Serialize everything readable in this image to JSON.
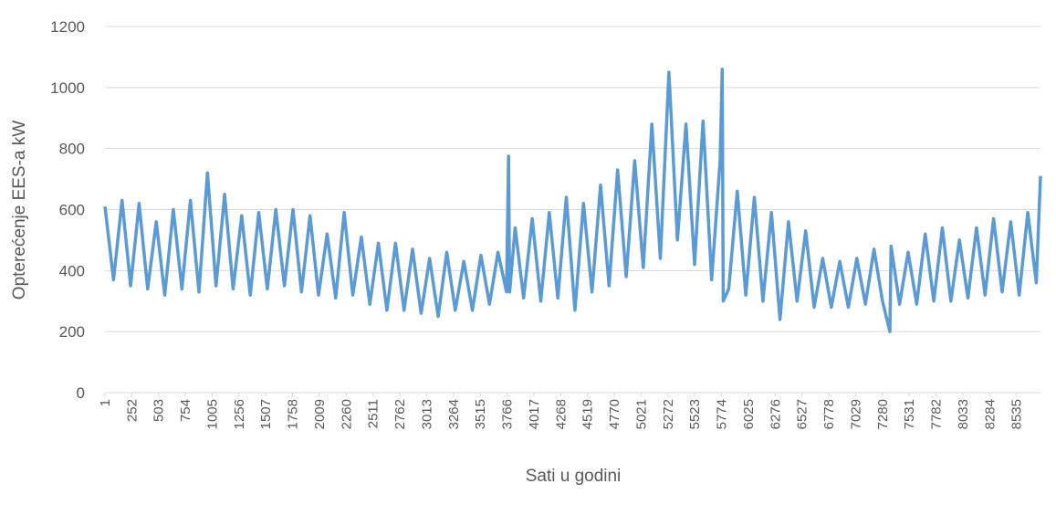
{
  "chart_data": {
    "type": "line",
    "xlabel": "Sati u godini",
    "ylabel": "Opterećenje EES-a kW",
    "xlim": [
      1,
      8760
    ],
    "xticks": [
      1,
      252,
      503,
      754,
      1005,
      1256,
      1507,
      1758,
      2009,
      2260,
      2511,
      2762,
      3013,
      3264,
      3515,
      3766,
      4017,
      4268,
      4519,
      4770,
      5021,
      5272,
      5523,
      5774,
      6025,
      6276,
      6527,
      6778,
      7029,
      7280,
      7531,
      7782,
      8033,
      8284,
      8535
    ],
    "ylim": [
      0,
      1200
    ],
    "yticks": [
      0,
      200,
      400,
      600,
      800,
      1000,
      1200
    ],
    "grid": true,
    "series": [
      {
        "color": "#5b9bd5",
        "x": [
          1,
          81,
          161,
          241,
          321,
          401,
          481,
          561,
          641,
          721,
          801,
          881,
          961,
          1041,
          1121,
          1201,
          1281,
          1361,
          1441,
          1521,
          1601,
          1681,
          1761,
          1841,
          1921,
          2001,
          2081,
          2161,
          2241,
          2321,
          2401,
          2481,
          2561,
          2641,
          2721,
          2801,
          2881,
          2961,
          3041,
          3121,
          3201,
          3281,
          3361,
          3441,
          3521,
          3601,
          3681,
          3761,
          3780,
          3790,
          3841,
          3921,
          4001,
          4081,
          4161,
          4241,
          4321,
          4401,
          4481,
          4561,
          4641,
          4721,
          4801,
          4881,
          4961,
          5041,
          5121,
          5201,
          5281,
          5361,
          5441,
          5521,
          5601,
          5681,
          5761,
          5780,
          5790,
          5841,
          5921,
          6001,
          6081,
          6161,
          6241,
          6321,
          6401,
          6481,
          6561,
          6641,
          6721,
          6801,
          6881,
          6961,
          7041,
          7121,
          7201,
          7281,
          7350,
          7361,
          7441,
          7521,
          7601,
          7681,
          7761,
          7841,
          7921,
          8001,
          8081,
          8161,
          8241,
          8321,
          8401,
          8481,
          8561,
          8641,
          8721,
          8760
        ],
        "values": [
          610,
          370,
          630,
          350,
          620,
          340,
          560,
          320,
          600,
          340,
          630,
          330,
          720,
          350,
          650,
          340,
          580,
          320,
          590,
          340,
          600,
          350,
          600,
          330,
          580,
          320,
          520,
          310,
          590,
          320,
          510,
          290,
          490,
          270,
          490,
          270,
          470,
          260,
          440,
          250,
          460,
          270,
          430,
          270,
          450,
          290,
          460,
          330,
          775,
          330,
          540,
          310,
          570,
          300,
          590,
          310,
          640,
          270,
          620,
          330,
          680,
          350,
          730,
          380,
          760,
          410,
          880,
          440,
          1050,
          500,
          880,
          420,
          890,
          370,
          760,
          1060,
          300,
          340,
          660,
          320,
          640,
          300,
          590,
          240,
          560,
          300,
          530,
          280,
          440,
          280,
          430,
          280,
          440,
          290,
          470,
          300,
          200,
          480,
          290,
          460,
          290,
          520,
          300,
          540,
          300,
          500,
          310,
          540,
          320,
          570,
          330,
          560,
          320,
          590,
          360,
          710
        ]
      }
    ]
  }
}
